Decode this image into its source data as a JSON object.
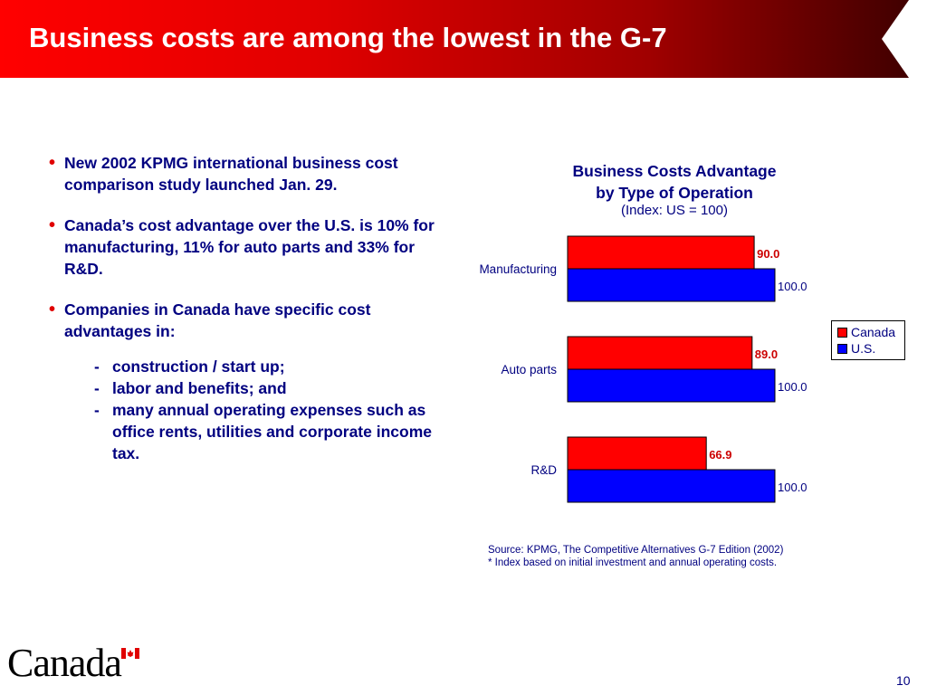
{
  "header": {
    "title": "Business costs are among the lowest in the G-7"
  },
  "bullets": [
    {
      "text": "New 2002 KPMG international business cost comparison study launched Jan. 29."
    },
    {
      "text": "Canada’s cost advantage over the U.S. is 10% for manufacturing, 11% for auto parts and 33% for R&D."
    },
    {
      "text": "Companies in Canada have specific cost advantages in:"
    }
  ],
  "sub_items": [
    {
      "text": "construction / start up;"
    },
    {
      "text": "labor and benefits; and"
    },
    {
      "text": "many annual operating expenses such as office rents, utilities and corporate income tax."
    }
  ],
  "chart_data": {
    "type": "bar",
    "orientation": "horizontal",
    "title": "Business Costs Advantage by Type of Operation",
    "title_lines": [
      "Business Costs Advantage",
      "by Type of Operation"
    ],
    "subtitle": "(Index: US = 100)",
    "categories": [
      "Manufacturing",
      "Auto parts",
      "R&D"
    ],
    "series": [
      {
        "name": "Canada",
        "values": [
          90.0,
          89.0,
          66.9
        ],
        "color": "#ff0000",
        "label_color": "#cc0000"
      },
      {
        "name": "U.S.",
        "values": [
          100.0,
          100.0,
          100.0
        ],
        "color": "#0000ff",
        "label_color": "#000080"
      }
    ],
    "value_labels": true,
    "legend": {
      "placement": "right"
    },
    "grid": false
  },
  "source": {
    "line1": "Source: KPMG, The Competitive Alternatives G-7 Edition (2002)",
    "line2": "* Index based on initial investment and annual operating costs."
  },
  "footer": {
    "wordmark": "Canada",
    "page_number": "10"
  }
}
